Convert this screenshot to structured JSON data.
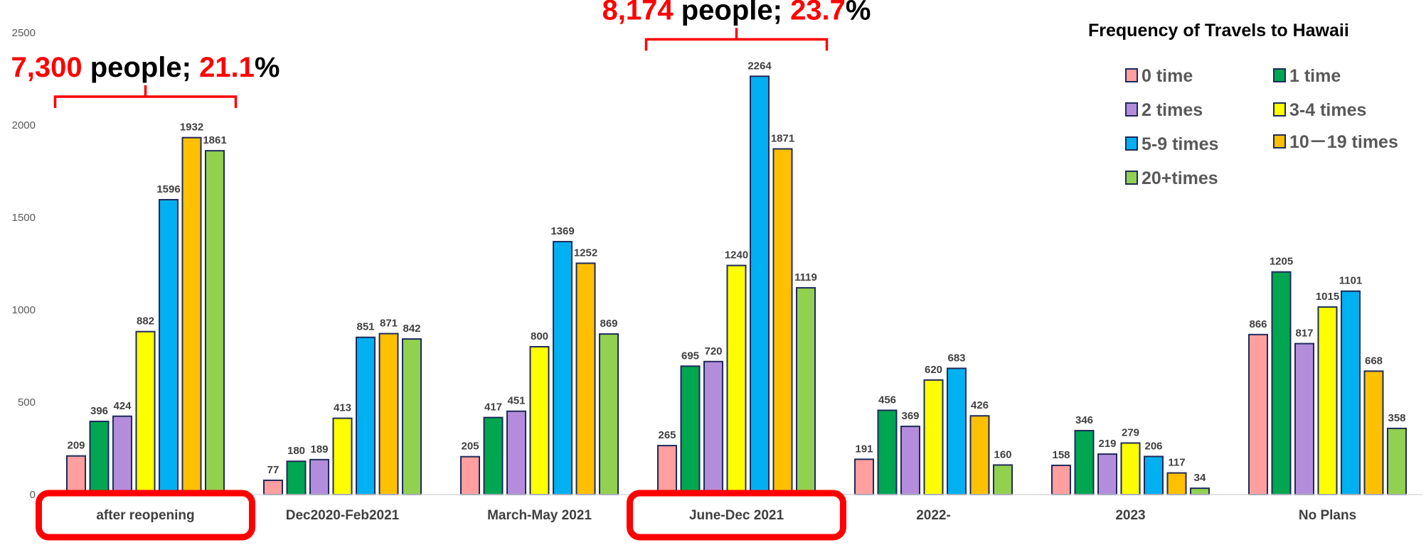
{
  "chart_data": {
    "type": "bar",
    "title": "",
    "xlabel": "",
    "ylabel": "",
    "ylim": [
      0,
      2500
    ],
    "yticks": [
      0,
      500,
      1000,
      1500,
      2000,
      2500
    ],
    "grid": false,
    "categories": [
      "after reopening",
      "Dec2020-Feb2021",
      "March-May 2021",
      "June-Dec 2021",
      "2022-",
      "2023",
      "No Plans"
    ],
    "legend": {
      "title": "Frequency of Travels to Hawaii",
      "placement": "top-right"
    },
    "series": [
      {
        "name": "0 time",
        "color": "#ff9f9f",
        "values": [
          209,
          77,
          205,
          265,
          191,
          158,
          866
        ]
      },
      {
        "name": "1 time",
        "color": "#00a650",
        "values": [
          396,
          180,
          417,
          695,
          456,
          346,
          1205
        ]
      },
      {
        "name": "2 times",
        "color": "#b38ddb",
        "values": [
          424,
          189,
          451,
          720,
          369,
          219,
          817
        ]
      },
      {
        "name": "3-4 times",
        "color": "#ffff00",
        "values": [
          882,
          413,
          800,
          1240,
          620,
          279,
          1015
        ]
      },
      {
        "name": "5-9 times",
        "color": "#00b0f0",
        "values": [
          1596,
          851,
          1369,
          2264,
          683,
          206,
          1101
        ]
      },
      {
        "name": "10－19 times",
        "color": "#ffc000",
        "values": [
          1932,
          871,
          1252,
          1871,
          426,
          117,
          668
        ]
      },
      {
        "name": "20+times",
        "color": "#92d050",
        "values": [
          1861,
          842,
          869,
          1119,
          160,
          34,
          358
        ]
      }
    ],
    "highlighted_categories": [
      "after reopening",
      "June-Dec 2021"
    ],
    "annotations": [
      {
        "category": "after reopening",
        "number": "7,300",
        "unit": " people; ",
        "percent": "21.1",
        "percent_sign": "%"
      },
      {
        "category": "June-Dec 2021",
        "number": "8,174",
        "unit": " people; ",
        "percent": "23.7",
        "percent_sign": "%"
      }
    ]
  },
  "colors": {
    "bar_outline": "#1f2a5a",
    "highlight": "#ff0000",
    "annotation_number": "#ff0000",
    "annotation_text": "#000000"
  }
}
